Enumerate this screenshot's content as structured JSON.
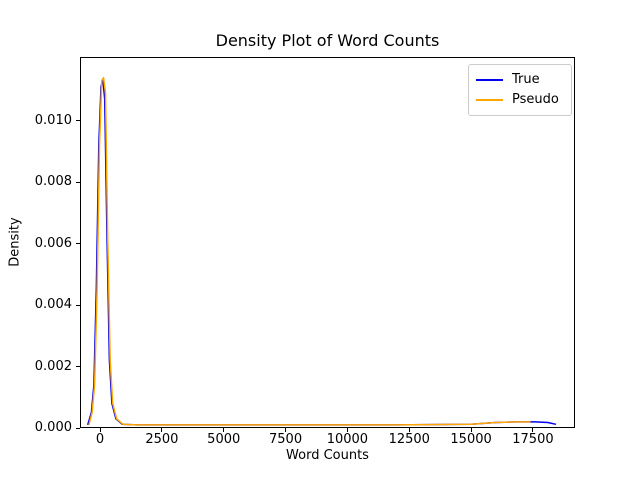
{
  "chart_data": {
    "type": "line",
    "title": "Density Plot of Word Counts",
    "xlabel": "Word Counts",
    "ylabel": "Density",
    "xlim": [
      -810,
      19200
    ],
    "ylim": [
      0,
      0.01207
    ],
    "grid": false,
    "background": "#ffffff",
    "x_ticks": {
      "values": [
        0,
        2500,
        5000,
        7500,
        10000,
        12500,
        15000,
        17500
      ],
      "labels": [
        "0",
        "2500",
        "5000",
        "7500",
        "10000",
        "12500",
        "15000",
        "17500"
      ]
    },
    "y_ticks": {
      "values": [
        0.0,
        0.002,
        0.004,
        0.006,
        0.008,
        0.01
      ],
      "labels": [
        "0.000",
        "0.002",
        "0.004",
        "0.006",
        "0.008",
        "0.010"
      ]
    },
    "legend": {
      "position": "upper right",
      "entries": [
        {
          "label": "True",
          "color": "#0000ee"
        },
        {
          "label": "Pseudo",
          "color": "#ffa500"
        }
      ]
    },
    "series": [
      {
        "name": "True",
        "color": "#0000ee",
        "peak": {
          "x": 110,
          "density": 0.01135
        },
        "points": [
          [
            -500,
            0.0001
          ],
          [
            -350,
            0.0005
          ],
          [
            -250,
            0.0014
          ],
          [
            -150,
            0.0045
          ],
          [
            -50,
            0.0092
          ],
          [
            40,
            0.0111
          ],
          [
            110,
            0.01135
          ],
          [
            190,
            0.0107
          ],
          [
            280,
            0.0062
          ],
          [
            380,
            0.0022
          ],
          [
            480,
            0.0008
          ],
          [
            640,
            0.0003
          ],
          [
            900,
            0.00012
          ],
          [
            1500,
            0.0001
          ],
          [
            4000,
            0.0001
          ],
          [
            8000,
            0.0001
          ],
          [
            12000,
            0.0001
          ],
          [
            15000,
            0.00012
          ],
          [
            16000,
            0.00018
          ],
          [
            16800,
            0.0002
          ],
          [
            17600,
            0.0002
          ],
          [
            18100,
            0.00018
          ],
          [
            18430,
            0.00012
          ]
        ]
      },
      {
        "name": "Pseudo",
        "color": "#ffa500",
        "peak": {
          "x": 140,
          "density": 0.0114
        },
        "points": [
          [
            -450,
            0.0001
          ],
          [
            -320,
            0.0005
          ],
          [
            -220,
            0.0014
          ],
          [
            -120,
            0.0045
          ],
          [
            -20,
            0.0092
          ],
          [
            70,
            0.0113
          ],
          [
            140,
            0.0114
          ],
          [
            220,
            0.0109
          ],
          [
            310,
            0.0062
          ],
          [
            410,
            0.0022
          ],
          [
            510,
            0.0008
          ],
          [
            670,
            0.0003
          ],
          [
            930,
            0.00012
          ],
          [
            1500,
            0.0001
          ],
          [
            4000,
            0.0001
          ],
          [
            8000,
            0.0001
          ],
          [
            12000,
            0.0001
          ],
          [
            15000,
            0.00012
          ],
          [
            16000,
            0.00018
          ],
          [
            16800,
            0.0002
          ],
          [
            17400,
            0.0002
          ]
        ]
      }
    ]
  }
}
